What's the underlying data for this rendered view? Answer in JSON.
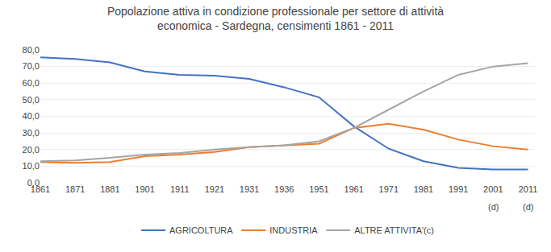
{
  "chart_data": {
    "type": "line",
    "title": "Popolazione attiva in condizione professionale per settore di attività\neconomica - Sardegna, censimenti 1861 - 2011",
    "categories": [
      "1861",
      "1871",
      "1881",
      "1901",
      "1911",
      "1921",
      "1931",
      "1936",
      "1951",
      "1961",
      "1971",
      "1981",
      "1991",
      "2001",
      "2011"
    ],
    "series": [
      {
        "name": "AGRICOLTURA",
        "color": "#4472C4",
        "values": [
          75.5,
          74.5,
          72.5,
          67.0,
          65.0,
          64.5,
          62.5,
          57.5,
          51.5,
          34.0,
          20.5,
          13.0,
          9.0,
          8.0,
          8.0
        ]
      },
      {
        "name": "INDUSTRIA",
        "color": "#ED7D31",
        "values": [
          12.5,
          12.0,
          12.5,
          16.0,
          17.0,
          18.5,
          21.5,
          22.5,
          23.5,
          33.0,
          35.5,
          32.0,
          26.0,
          22.0,
          20.0
        ]
      },
      {
        "name": "ALTRE ATTIVITA'(c)",
        "color": "#A5A5A5",
        "values": [
          13.0,
          13.5,
          15.0,
          17.0,
          18.0,
          20.0,
          21.5,
          22.5,
          25.0,
          33.0,
          44.0,
          55.0,
          65.0,
          70.0,
          72.0
        ]
      }
    ],
    "ylim": [
      0,
      80
    ],
    "yticks": [
      {
        "value": 0,
        "label": "0,0"
      },
      {
        "value": 10,
        "label": "10,0"
      },
      {
        "value": 20,
        "label": "20,0"
      },
      {
        "value": 30,
        "label": "30,0"
      },
      {
        "value": 40,
        "label": "40,0"
      },
      {
        "value": 50,
        "label": "50,0"
      },
      {
        "value": 60,
        "label": "60,0"
      },
      {
        "value": 70,
        "label": "70,0"
      },
      {
        "value": 80,
        "label": "80,0"
      }
    ],
    "annotations": [
      {
        "text": "(d)",
        "x": "2001"
      },
      {
        "text": "(d)",
        "x": "2011"
      }
    ],
    "grid": true,
    "legend": "bottom"
  }
}
